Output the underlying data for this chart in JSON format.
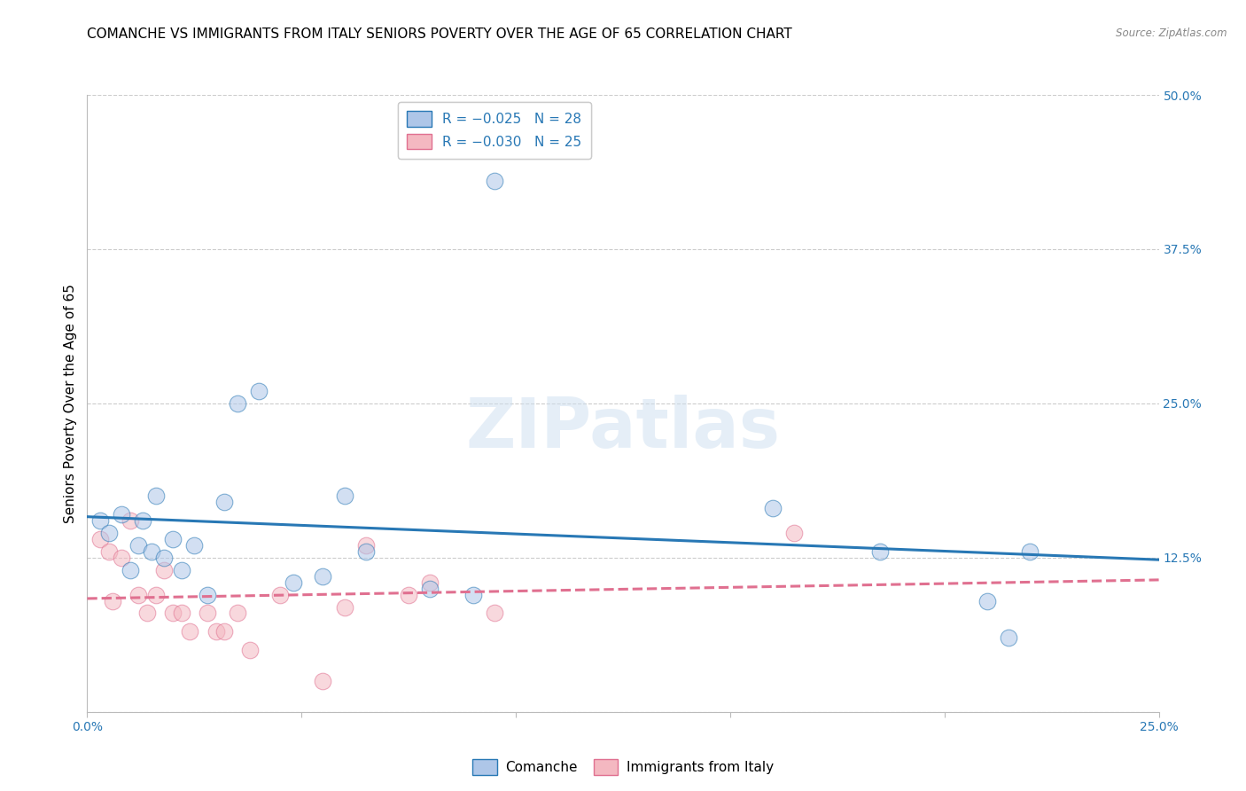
{
  "title": "COMANCHE VS IMMIGRANTS FROM ITALY SENIORS POVERTY OVER THE AGE OF 65 CORRELATION CHART",
  "source": "Source: ZipAtlas.com",
  "ylabel": "Seniors Poverty Over the Age of 65",
  "xlim": [
    0.0,
    0.25
  ],
  "ylim": [
    0.0,
    0.5
  ],
  "xticks": [
    0.0,
    0.05,
    0.1,
    0.15,
    0.2,
    0.25
  ],
  "xticklabels": [
    "0.0%",
    "",
    "",
    "",
    "",
    "25.0%"
  ],
  "yticks_right": [
    0.0,
    0.125,
    0.25,
    0.375,
    0.5
  ],
  "yticklabels_right": [
    "",
    "12.5%",
    "25.0%",
    "37.5%",
    "50.0%"
  ],
  "watermark": "ZIPatlas",
  "comanche_color": "#aec6e8",
  "italy_color": "#f4b8c1",
  "comanche_line_color": "#2878b5",
  "italy_line_color": "#e07090",
  "comanche_x": [
    0.003,
    0.005,
    0.008,
    0.01,
    0.012,
    0.013,
    0.015,
    0.016,
    0.018,
    0.02,
    0.022,
    0.025,
    0.028,
    0.032,
    0.035,
    0.04,
    0.048,
    0.055,
    0.06,
    0.065,
    0.08,
    0.09,
    0.095,
    0.16,
    0.185,
    0.21,
    0.215,
    0.22
  ],
  "comanche_y": [
    0.155,
    0.145,
    0.16,
    0.115,
    0.135,
    0.155,
    0.13,
    0.175,
    0.125,
    0.14,
    0.115,
    0.135,
    0.095,
    0.17,
    0.25,
    0.26,
    0.105,
    0.11,
    0.175,
    0.13,
    0.1,
    0.095,
    0.43,
    0.165,
    0.13,
    0.09,
    0.06,
    0.13
  ],
  "italy_x": [
    0.003,
    0.005,
    0.006,
    0.008,
    0.01,
    0.012,
    0.014,
    0.016,
    0.018,
    0.02,
    0.022,
    0.024,
    0.028,
    0.03,
    0.032,
    0.035,
    0.038,
    0.045,
    0.055,
    0.06,
    0.065,
    0.075,
    0.08,
    0.095,
    0.165
  ],
  "italy_y": [
    0.14,
    0.13,
    0.09,
    0.125,
    0.155,
    0.095,
    0.08,
    0.095,
    0.115,
    0.08,
    0.08,
    0.065,
    0.08,
    0.065,
    0.065,
    0.08,
    0.05,
    0.095,
    0.025,
    0.085,
    0.135,
    0.095,
    0.105,
    0.08,
    0.145
  ],
  "grid_color": "#cccccc",
  "background_color": "#ffffff",
  "title_fontsize": 11,
  "axis_label_fontsize": 11,
  "tick_fontsize": 10,
  "dot_alpha": 0.55
}
